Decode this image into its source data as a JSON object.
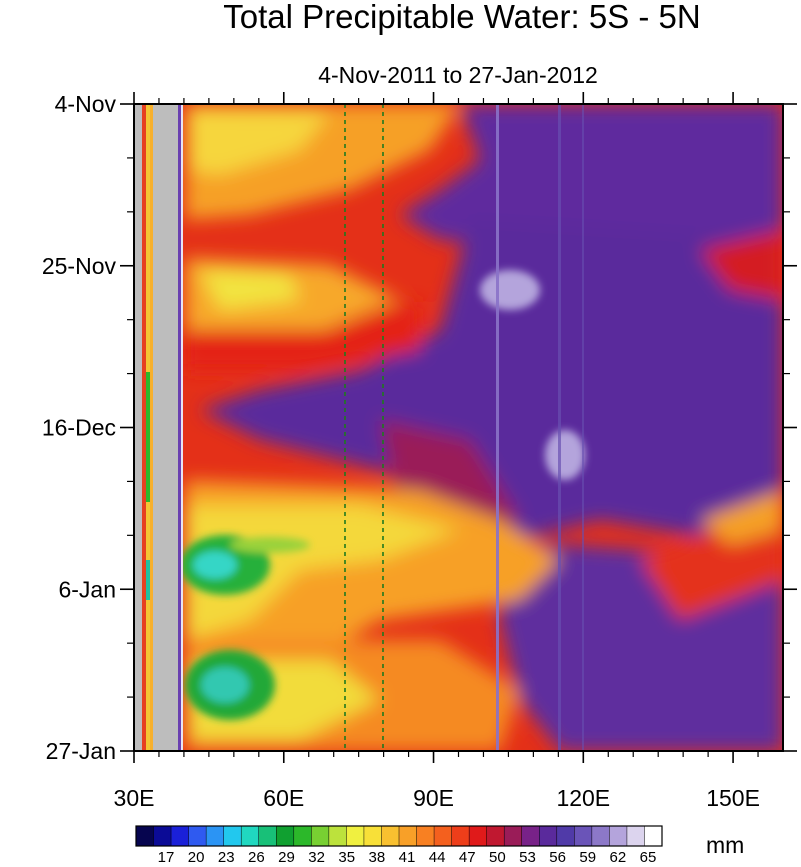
{
  "chart_data": {
    "type": "heatmap",
    "title": "Total Precipitable Water: 5S - 5N",
    "subtitle": "4-Nov-2011 to 27-Jan-2012",
    "x_axis": {
      "range": [
        30,
        160
      ],
      "ticks": [
        30,
        60,
        90,
        120,
        150
      ],
      "tick_labels": [
        "30E",
        "60E",
        "90E",
        "120E",
        "150E"
      ]
    },
    "y_axis": {
      "range_days": [
        0,
        84
      ],
      "ticks_days": [
        0,
        21,
        42,
        63,
        84
      ],
      "tick_labels": [
        "4-Nov",
        "25-Nov",
        "16-Dec",
        "6-Jan",
        "27-Jan"
      ]
    },
    "reference_lines_lon": [
      72.5,
      80
    ],
    "colorbar": {
      "levels": [
        17,
        20,
        23,
        26,
        29,
        32,
        35,
        38,
        41,
        44,
        47,
        50,
        53,
        56,
        59,
        62,
        65
      ],
      "units": "mm",
      "colors": [
        "#06054f",
        "#0b0b96",
        "#1a20d8",
        "#2f5af0",
        "#2b94f4",
        "#22c8ee",
        "#20d8c0",
        "#18c078",
        "#10a030",
        "#2cb82a",
        "#78d032",
        "#bce23c",
        "#f0f040",
        "#f8e038",
        "#f8c030",
        "#f8a028",
        "#f88022",
        "#f4601e",
        "#ee3e1a",
        "#e01a1a",
        "#c01830",
        "#9a1c58",
        "#782288",
        "#5a2a9c",
        "#503aa8",
        "#6a54b8",
        "#8c78c8",
        "#b4a4dc",
        "#dcd4ee",
        "#ffffff"
      ]
    }
  }
}
